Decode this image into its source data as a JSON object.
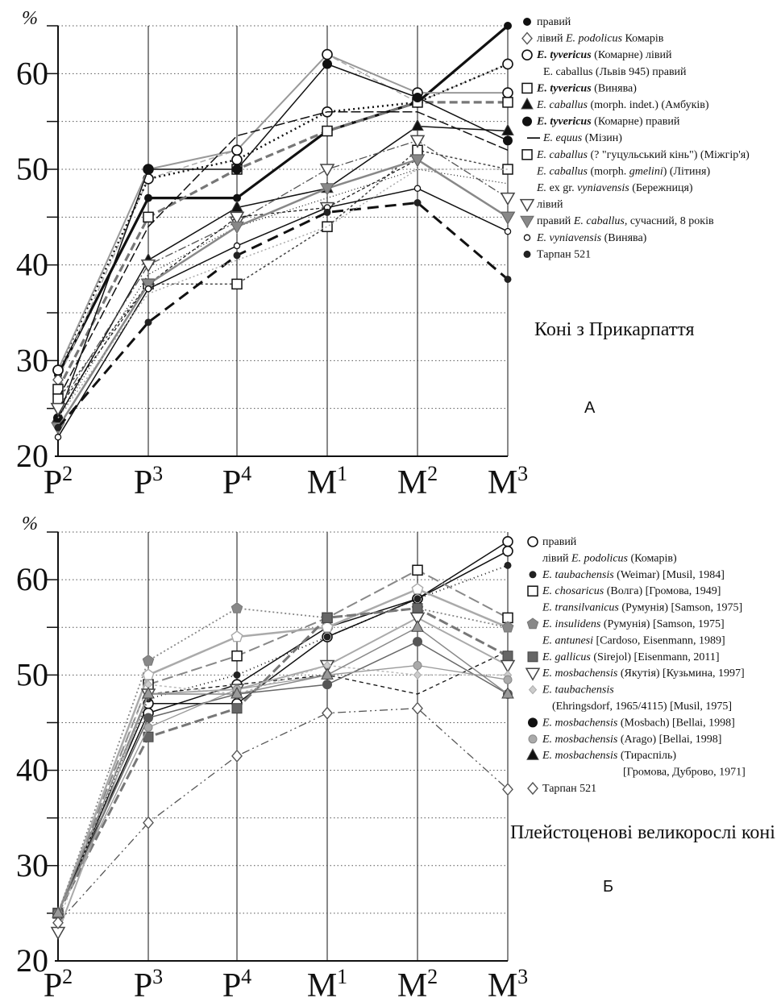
{
  "chart_data": [
    {
      "type": "line",
      "panel_letter": "А",
      "title": "Коні з Прикарпаття",
      "y_unit": "%",
      "ylim": [
        20,
        65
      ],
      "yticks": [
        20,
        30,
        40,
        50,
        60
      ],
      "x_categories": [
        {
          "base": "P",
          "sup": "2"
        },
        {
          "base": "P",
          "sup": "3"
        },
        {
          "base": "P",
          "sup": "4"
        },
        {
          "base": "M",
          "sup": "1"
        },
        {
          "base": "M",
          "sup": "2"
        },
        {
          "base": "M",
          "sup": "3"
        }
      ],
      "grid": "dotted",
      "legend_position": "right, next to line ends",
      "series": [
        {
          "name": "E. podolicus (Комарів) правий",
          "color": "#111111",
          "width": 3.2,
          "dash": "",
          "marker": "dot",
          "values": [
            28.5,
            47.0,
            47.0,
            54.0,
            57.0,
            65.0
          ]
        },
        {
          "name": "E. podolicus (Комарів) лівий",
          "color": "#aaaaaa",
          "width": 1.5,
          "dash": "7 4",
          "marker": "diamond-open",
          "values": [
            28.0,
            49.0,
            52.0,
            62.0,
            57.0,
            61.0
          ]
        },
        {
          "name": "E. tyvericus (Комарне) лівий",
          "color": "#111111",
          "width": 2.5,
          "dash": "2 4",
          "marker": "circle-open",
          "values": [
            29.0,
            49.0,
            51.0,
            56.0,
            57.0,
            61.0
          ]
        },
        {
          "name": "E. caballus (Львів 945) правий",
          "color": "#999999",
          "width": 2,
          "dash": "",
          "marker": "circle-open",
          "values": [
            29.0,
            50.0,
            52.0,
            62.0,
            58.0,
            58.0
          ]
        },
        {
          "name": "E. tyvericus (Винява)",
          "color": "#777777",
          "width": 3.2,
          "dash": "10 5",
          "marker": "square-open",
          "values": [
            27.0,
            45.0,
            50.0,
            54.0,
            57.0,
            57.0
          ]
        },
        {
          "name": "E. caballus (morph. indet.) (Амбуків)",
          "color": "#111111",
          "width": 1.5,
          "dash": "",
          "marker": "triangle-filled",
          "values": [
            24.0,
            40.5,
            46.0,
            48.0,
            54.5,
            54.0
          ]
        },
        {
          "name": "E. tyvericus (Комарне) правий",
          "color": "#111111",
          "width": 1.5,
          "dash": "",
          "marker": "dot-big",
          "values": [
            24.0,
            50.0,
            50.0,
            61.0,
            57.5,
            53.0
          ]
        },
        {
          "name": "E. equus (Мізин)",
          "color": "#111111",
          "width": 1.5,
          "dash": "12 4",
          "marker": "none",
          "values": [
            26.0,
            44.0,
            53.5,
            56.0,
            56.0,
            52.0
          ]
        },
        {
          "name": "E. caballus (? \"гуцульський кінь\") (Міжгір'я)",
          "color": "#444444",
          "width": 1.5,
          "dash": "3 3",
          "marker": "square-open",
          "values": [
            26.0,
            38.0,
            38.0,
            44.0,
            52.0,
            50.0
          ]
        },
        {
          "name": "E. caballus (morph. gmelini) (Літиня)",
          "color": "#111111",
          "width": 1.2,
          "dash": "1 3",
          "marker": "none",
          "values": [
            24.0,
            39.0,
            44.0,
            47.0,
            50.0,
            48.5
          ]
        },
        {
          "name": "E. ex gr. vyniaviensis (Бережниця)",
          "color": "#555555",
          "width": 1.3,
          "dash": "10 3 2 3",
          "marker": "triangle-down-open",
          "values": [
            25.0,
            40.0,
            44.5,
            50.0,
            53.0,
            47.0
          ]
        },
        {
          "name": "E. caballus, сучасний, 8 років лівий",
          "color": "#111111",
          "width": 1.2,
          "dash": "4 3",
          "marker": "triangle-down-open",
          "values": [
            25.0,
            38.0,
            45.0,
            46.0,
            51.0,
            45.0
          ]
        },
        {
          "name": "E. caballus, сучасний, 8 років правий",
          "color": "#888888",
          "width": 2.5,
          "dash": "",
          "marker": "triangle-down-filled",
          "values": [
            23.0,
            38.0,
            44.0,
            48.0,
            51.0,
            45.0
          ]
        },
        {
          "name": "E. vyniavensis (Винява)",
          "color": "#111111",
          "width": 1.5,
          "dash": "",
          "marker": "circle-open-small",
          "values": [
            22.0,
            37.5,
            42.0,
            46.0,
            48.0,
            43.5
          ]
        },
        {
          "name": "Тарпан 521",
          "color": "#111111",
          "width": 3,
          "dash": "14 8",
          "marker": "dot-small",
          "values": [
            23.0,
            34.0,
            41.0,
            45.5,
            46.5,
            38.5
          ]
        },
        {
          "name": "",
          "color": "#aaaaaa",
          "width": 1.5,
          "dash": "2 3",
          "marker": "none",
          "values": [
            24.0,
            37.0,
            40.5,
            44.0,
            50.0,
            50.0
          ]
        }
      ],
      "legend": [
        {
          "marker": "dot",
          "text": [
            {
              "t": "правий"
            }
          ]
        },
        {
          "marker": "diamond-open",
          "text": [
            {
              "t": "лівий "
            },
            {
              "t": "E. podolicus",
              "i": true
            },
            {
              "t": " Комарів"
            }
          ]
        },
        {
          "marker": "circle-open",
          "text": [
            {
              "t": "E. tyvericus",
              "i": true,
              "b": true
            },
            {
              "t": " (Комарне) лівий"
            }
          ]
        },
        {
          "marker": "none",
          "text": [
            {
              "t": "E. caballus (Львів 945) правий"
            }
          ]
        },
        {
          "marker": "square-open",
          "text": [
            {
              "t": "E. tyvericus",
              "i": true,
              "b": true
            },
            {
              "t": " (Винява)"
            }
          ]
        },
        {
          "marker": "triangle-filled",
          "text": [
            {
              "t": "E. caballus",
              "i": true
            },
            {
              "t": " (morph. indet.) (Амбуків)"
            }
          ]
        },
        {
          "marker": "dot-big",
          "text": [
            {
              "t": "E. tyvericus",
              "i": true,
              "b": true
            },
            {
              "t": " (Комарне) правий"
            }
          ]
        },
        {
          "marker": "dash",
          "text": [
            {
              "t": "E. equus",
              "i": true
            },
            {
              "t": " (Мізин)"
            }
          ]
        },
        {
          "marker": "square-open",
          "text": [
            {
              "t": "E. caballus",
              "i": true
            },
            {
              "t": " (? \"гуцульський кінь\") (Міжгір'я)"
            }
          ]
        },
        {
          "marker": "none",
          "text": [
            {
              "t": "E. caballus",
              "i": true
            },
            {
              "t": " (morph. "
            },
            {
              "t": "gmelini",
              "i": true
            },
            {
              "t": ")  (Літиня)"
            }
          ]
        },
        {
          "marker": "none",
          "text": [
            {
              "t": "E.",
              "i": true
            },
            {
              "t": " ex gr. "
            },
            {
              "t": "vyniavensis",
              "i": true
            },
            {
              "t": "  (Бережниця)"
            }
          ]
        },
        {
          "marker": "triangle-down-open",
          "text": [
            {
              "t": "лівий"
            }
          ]
        },
        {
          "marker": "triangle-down-filled",
          "text": [
            {
              "t": "правий "
            },
            {
              "t": "E. caballus",
              "i": true
            },
            {
              "t": ", сучасний, 8 років"
            }
          ]
        },
        {
          "marker": "circle-open-small",
          "text": [
            {
              "t": "E. vyniavensis",
              "i": true
            },
            {
              "t": "  (Винява)"
            }
          ]
        },
        {
          "marker": "dot-small",
          "text": [
            {
              "t": "Тарпан 521"
            }
          ]
        }
      ]
    },
    {
      "type": "line",
      "panel_letter": "Б",
      "title": "Плейстоценові великорослі коні",
      "y_unit": "%",
      "ylim": [
        20,
        65
      ],
      "yticks": [
        20,
        30,
        40,
        50,
        60
      ],
      "x_categories": [
        {
          "base": "P",
          "sup": "2"
        },
        {
          "base": "P",
          "sup": "3"
        },
        {
          "base": "P",
          "sup": "4"
        },
        {
          "base": "M",
          "sup": "1"
        },
        {
          "base": "M",
          "sup": "2"
        },
        {
          "base": "M",
          "sup": "3"
        }
      ],
      "grid": "dotted",
      "legend_position": "right, next to line ends",
      "series": [
        {
          "name": "E. podolicus (Комарів) правий",
          "color": "#111111",
          "width": 1.5,
          "dash": "",
          "marker": "circle-open",
          "values": [
            25.0,
            47.0,
            47.0,
            54.0,
            58.0,
            64.0
          ]
        },
        {
          "name": "E. podolicus (Комарів) лівий",
          "color": "#111111",
          "width": 1.5,
          "dash": "",
          "marker": "circle-open",
          "values": [
            25.0,
            46.0,
            49.0,
            55.0,
            58.0,
            63.0
          ]
        },
        {
          "name": "E. taubachensis (Weimar) [Musil, 1984]",
          "color": "#111111",
          "width": 1.8,
          "dash": "1 4",
          "marker": "dot-small",
          "values": [
            25.0,
            47.5,
            50.0,
            54.0,
            58.0,
            61.5
          ]
        },
        {
          "name": "E. chosaricus (Волга) [Громова, 1949]",
          "color": "#888888",
          "width": 2,
          "dash": "14 5",
          "marker": "square-open",
          "values": [
            25.0,
            49.0,
            52.0,
            56.0,
            61.0,
            56.0
          ]
        },
        {
          "name": "E. transilvanicus (Румунія) [Samson, 1975]",
          "color": "#aaaaaa",
          "width": 2.5,
          "dash": "",
          "marker": "pentagon-open",
          "values": [
            25.0,
            50.0,
            54.0,
            55.0,
            59.0,
            55.0
          ]
        },
        {
          "name": "E. insulidens (Румунія) [Samson, 1975]",
          "color": "#888888",
          "width": 1.8,
          "dash": "2 3",
          "marker": "pentagon-filled",
          "values": [
            25.0,
            51.5,
            57.0,
            56.0,
            57.0,
            55.0
          ]
        },
        {
          "name": "E. antunesi [Cardoso, Eisenmann, 1989]",
          "color": "#111111",
          "width": 1.3,
          "dash": "5 4",
          "marker": "none",
          "values": [
            25.0,
            48.0,
            49.0,
            50.0,
            48.0,
            52.5
          ]
        },
        {
          "name": "E. gallicus (Sirejol) [Eisenmann, 2011]",
          "color": "#777777",
          "width": 3,
          "dash": "12 5",
          "marker": "square-filled",
          "values": [
            25.0,
            43.5,
            46.5,
            56.0,
            57.0,
            52.0
          ]
        },
        {
          "name": "E. mosbachensis (Якутія) [Кузьмина, 1997]",
          "color": "#aaaaaa",
          "width": 2,
          "dash": "",
          "marker": "triangle-down-open",
          "values": [
            23.0,
            48.0,
            48.5,
            51.0,
            56.0,
            51.0
          ]
        },
        {
          "name": "E. taubachensis (Ehringsdorf, 1965/4115) [Musil, 1975]",
          "color": "#bbbbbb",
          "width": 1.5,
          "dash": "3 3",
          "marker": "diamond-small",
          "values": [
            24.0,
            49.0,
            48.0,
            51.0,
            50.0,
            50.0
          ]
        },
        {
          "name": "E. mosbachensis (Mosbach) [Bellai, 1998]",
          "color": "#666666",
          "width": 1.5,
          "dash": "",
          "marker": "dot-big",
          "values": [
            25.0,
            45.5,
            48.0,
            49.0,
            53.5,
            48.0
          ]
        },
        {
          "name": "E. mosbachensis (Arago) [Bellai, 1998]",
          "color": "#999999",
          "width": 1.3,
          "dash": "",
          "marker": "dot-grey",
          "values": [
            25.0,
            44.5,
            48.5,
            50.0,
            51.0,
            49.5
          ]
        },
        {
          "name": "E. mosbachensis (Тираспіль) [Громова, Дуброво, 1971]",
          "color": "#888888",
          "width": 1.5,
          "dash": "",
          "marker": "triangle-filled",
          "values": [
            25.0,
            48.0,
            48.0,
            50.0,
            55.0,
            48.0
          ]
        },
        {
          "name": "Тарпан 521",
          "color": "#555555",
          "width": 1.3,
          "dash": "10 4 2 4 2 4",
          "marker": "diamond-open",
          "values": [
            24.0,
            34.5,
            41.5,
            46.0,
            46.5,
            38.0
          ]
        }
      ],
      "legend": [
        {
          "marker": "circle-open",
          "text": [
            {
              "t": "правий"
            }
          ]
        },
        {
          "marker": "none",
          "text": [
            {
              "t": "лівий "
            },
            {
              "t": "E. podolicus",
              "i": true
            },
            {
              "t": " (Комарів)"
            }
          ]
        },
        {
          "marker": "dot-small",
          "text": [
            {
              "t": "E. taubachensis",
              "i": true
            },
            {
              "t": " (Weimar)  [Musil, 1984]"
            }
          ]
        },
        {
          "marker": "square-open",
          "text": [
            {
              "t": "E. chosaricus",
              "i": true
            },
            {
              "t": " (Волга) [Громова, 1949]"
            }
          ]
        },
        {
          "marker": "none",
          "text": [
            {
              "t": "E. transilvanicus",
              "i": true
            },
            {
              "t": " (Румунія) [Samson, 1975]"
            }
          ]
        },
        {
          "marker": "pentagon-filled",
          "text": [
            {
              "t": "E. insulidens",
              "i": true
            },
            {
              "t": " (Румунія) [Samson, 1975]"
            }
          ]
        },
        {
          "marker": "none",
          "text": [
            {
              "t": "E. antunesi",
              "i": true
            },
            {
              "t": " [Cardoso, Eisenmann, 1989]"
            }
          ]
        },
        {
          "marker": "square-filled",
          "text": [
            {
              "t": "E. gallicus",
              "i": true
            },
            {
              "t": " (Sirejol) [Eisenmann, 2011]"
            }
          ]
        },
        {
          "marker": "triangle-down-open",
          "text": [
            {
              "t": "E. mosbachensis",
              "i": true
            },
            {
              "t": " (Якутія) [Кузьмина, 1997]"
            }
          ]
        },
        {
          "marker": "diamond-small",
          "text": [
            {
              "t": "E. taubachensis",
              "i": true
            }
          ]
        },
        {
          "marker": "none",
          "text": [
            {
              "t": "(Ehringsdorf, 1965/4115) [Musil, 1975]"
            }
          ]
        },
        {
          "marker": "dot-big",
          "text": [
            {
              "t": "E. mosbachensis",
              "i": true
            },
            {
              "t": "  (Mosbach) [Bellai, 1998]"
            }
          ]
        },
        {
          "marker": "dot-grey",
          "text": [
            {
              "t": "E. mosbachensis",
              "i": true
            },
            {
              "t": "  (Arago) [Bellai, 1998]"
            }
          ]
        },
        {
          "marker": "triangle-filled",
          "text": [
            {
              "t": "E. mosbachensis",
              "i": true
            },
            {
              "t": " (Тираспіль)"
            }
          ]
        },
        {
          "marker": "none",
          "text": [
            {
              "t": "[Громова, Дуброво, 1971]"
            }
          ]
        },
        {
          "marker": "diamond-open",
          "text": [
            {
              "t": "Тарпан 521"
            }
          ]
        }
      ]
    }
  ]
}
